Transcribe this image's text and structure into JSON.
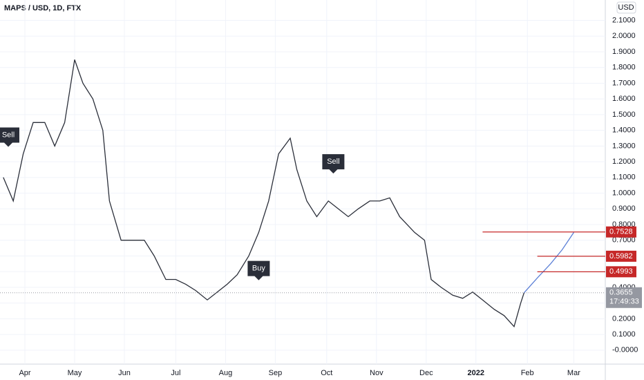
{
  "chart_data": {
    "type": "line",
    "title": "MAPS / USD, 1D, FTX",
    "currency": "USD",
    "xlim": [
      -15,
      345
    ],
    "ylim": [
      -0.08,
      2.23
    ],
    "grid": true,
    "xticks": [
      {
        "value": 0,
        "label": "Apr"
      },
      {
        "value": 30,
        "label": "May"
      },
      {
        "value": 60,
        "label": "Jun"
      },
      {
        "value": 91,
        "label": "Jul"
      },
      {
        "value": 121,
        "label": "Aug"
      },
      {
        "value": 151,
        "label": "Sep"
      },
      {
        "value": 182,
        "label": "Oct"
      },
      {
        "value": 212,
        "label": "Nov"
      },
      {
        "value": 242,
        "label": "Dec"
      },
      {
        "value": 272,
        "label": "2022"
      },
      {
        "value": 303,
        "label": "Feb"
      },
      {
        "value": 331,
        "label": "Mar"
      }
    ],
    "yticks": [
      {
        "value": 0,
        "label": "-0.0000"
      },
      {
        "value": 0.1,
        "label": "0.1000"
      },
      {
        "value": 0.2,
        "label": "0.2000"
      },
      {
        "value": 0.3,
        "label": "0.3000"
      },
      {
        "value": 0.4,
        "label": "0.4000"
      },
      {
        "value": 0.5,
        "label": "0.5000"
      },
      {
        "value": 0.6,
        "label": "0.6000"
      },
      {
        "value": 0.7,
        "label": "0.7000"
      },
      {
        "value": 0.8,
        "label": "0.8000"
      },
      {
        "value": 0.9,
        "label": "0.9000"
      },
      {
        "value": 1.0,
        "label": "1.0000"
      },
      {
        "value": 1.1,
        "label": "1.1000"
      },
      {
        "value": 1.2,
        "label": "1.2000"
      },
      {
        "value": 1.3,
        "label": "1.3000"
      },
      {
        "value": 1.4,
        "label": "1.4000"
      },
      {
        "value": 1.5,
        "label": "1.5000"
      },
      {
        "value": 1.6,
        "label": "1.6000"
      },
      {
        "value": 1.7,
        "label": "1.7000"
      },
      {
        "value": 1.8,
        "label": "1.8000"
      },
      {
        "value": 1.9,
        "label": "1.9000"
      },
      {
        "value": 2.0,
        "label": "2.0000"
      },
      {
        "value": 2.1,
        "label": "2.1000"
      }
    ],
    "series": [
      {
        "color": "#2a2e39",
        "x": [
          -13,
          -7,
          -1,
          5,
          12,
          18,
          24,
          30,
          35,
          41,
          47,
          51,
          58,
          64,
          72,
          78,
          85,
          91,
          97,
          103,
          110,
          116,
          122,
          128,
          135,
          141,
          147,
          153,
          160,
          164,
          170,
          176,
          183,
          189,
          195,
          201,
          208,
          214,
          220,
          226,
          235,
          241,
          245,
          251,
          258,
          264,
          270,
          276,
          283,
          289,
          295,
          299,
          301
        ],
        "values": [
          1.1,
          0.95,
          1.25,
          1.45,
          1.45,
          1.3,
          1.45,
          1.85,
          1.7,
          1.6,
          1.4,
          0.95,
          0.7,
          0.7,
          0.7,
          0.6,
          0.45,
          0.45,
          0.42,
          0.38,
          0.32,
          0.37,
          0.42,
          0.48,
          0.6,
          0.75,
          0.95,
          1.25,
          1.35,
          1.15,
          0.95,
          0.85,
          0.95,
          0.9,
          0.85,
          0.9,
          0.95,
          0.95,
          0.97,
          0.85,
          0.75,
          0.7,
          0.45,
          0.4,
          0.35,
          0.33,
          0.37,
          0.32,
          0.26,
          0.22,
          0.15,
          0.3,
          0.3655
        ]
      },
      {
        "color": "#5b7fd6",
        "x": [
          301,
          309,
          317,
          324,
          331
        ],
        "values": [
          0.3655,
          0.46,
          0.55,
          0.64,
          0.75
        ]
      }
    ],
    "price_levels": [
      {
        "value": 0.7528,
        "label": "0.7528",
        "start": 276
      },
      {
        "value": 0.5982,
        "label": "0.5982",
        "start": 309
      },
      {
        "value": 0.4993,
        "label": "0.4993",
        "start": 309
      }
    ],
    "last_price": {
      "value": 0.3655,
      "label": "0.3655",
      "countdown": "17:49:33"
    },
    "annotations": [
      {
        "text": "Sell",
        "x": -10,
        "y": 1.37
      },
      {
        "text": "Sell",
        "x": 186,
        "y": 1.2
      },
      {
        "text": "Buy",
        "x": 141,
        "y": 0.52
      }
    ]
  }
}
